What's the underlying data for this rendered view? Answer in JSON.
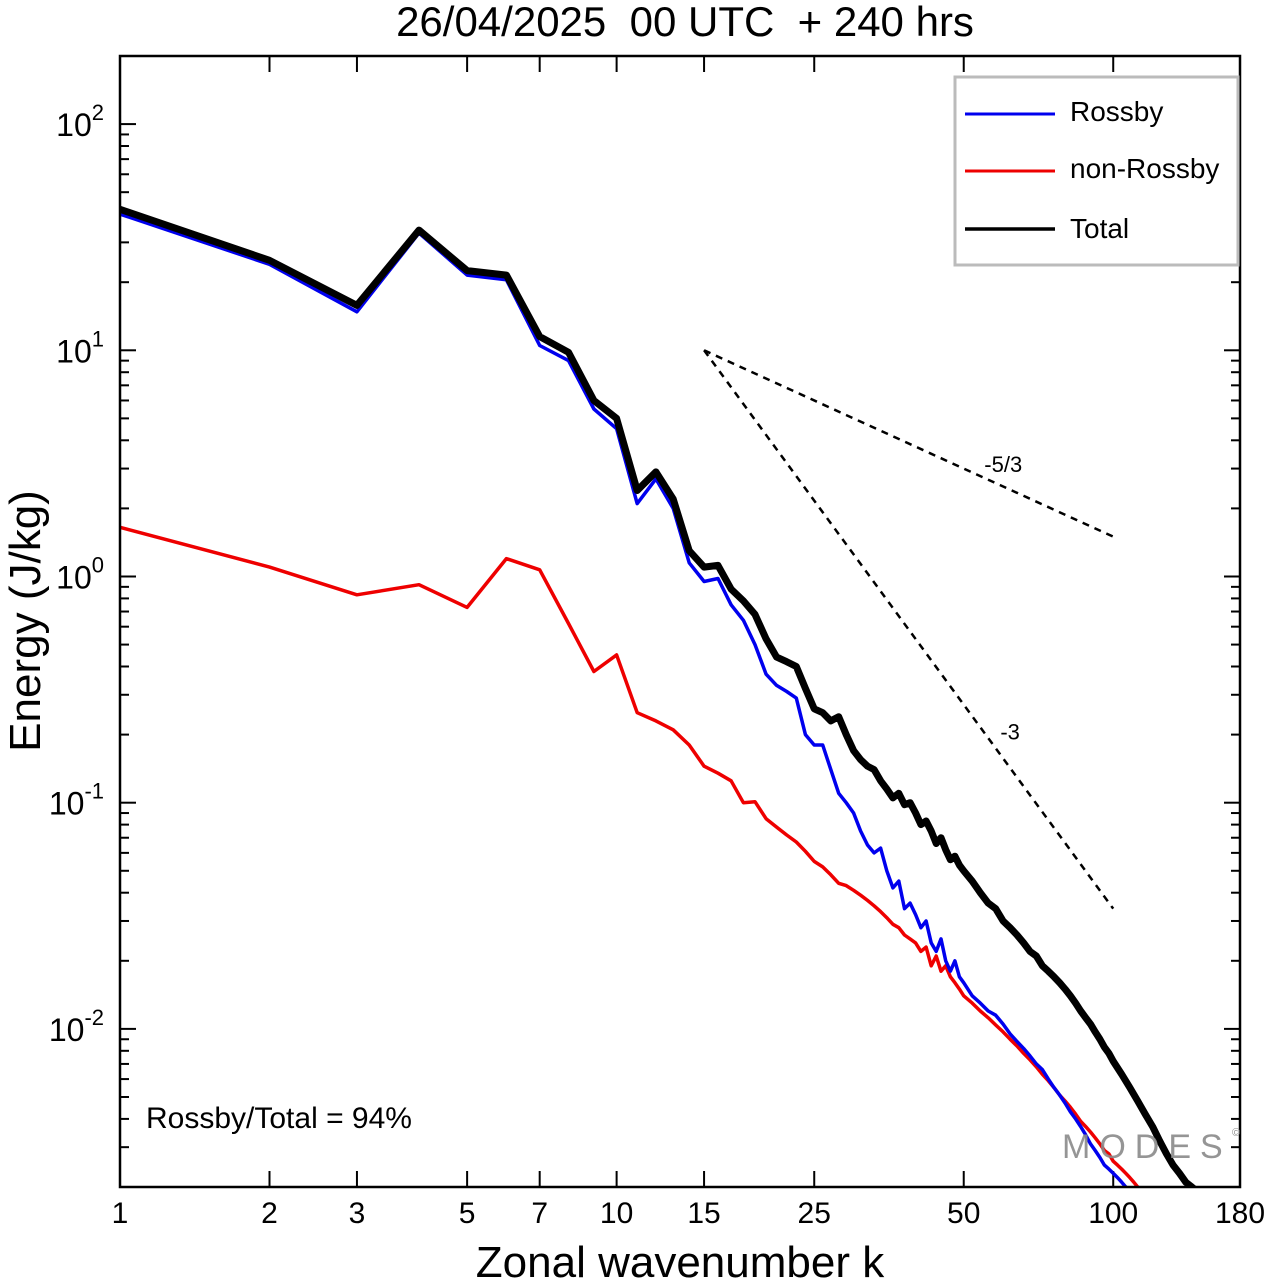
{
  "chart_data": {
    "type": "line",
    "title": "26/04/2025  00 UTC  + 240 hrs",
    "xlabel": "Zonal wavenumber k",
    "ylabel": "Energy (J/kg)",
    "xscale": "log",
    "yscale": "log",
    "xlim": [
      1,
      180
    ],
    "ylim": [
      0.002,
      200
    ],
    "x_ticks": [
      1,
      2,
      3,
      5,
      7,
      10,
      15,
      25,
      50,
      100,
      180
    ],
    "x_tick_labels": [
      "1",
      "2",
      "3",
      "5",
      "7",
      "10",
      "15",
      "25",
      "50",
      "100",
      "180"
    ],
    "y_ticks": [
      {
        "value": 100,
        "mantissa": "10",
        "exponent": "2"
      },
      {
        "value": 10,
        "mantissa": "10",
        "exponent": "1"
      },
      {
        "value": 1,
        "mantissa": "10",
        "exponent": "0"
      },
      {
        "value": 0.1,
        "mantissa": "10",
        "exponent": "-1"
      },
      {
        "value": 0.01,
        "mantissa": "10",
        "exponent": "-2"
      }
    ],
    "legend": {
      "placement": "top-right",
      "entries": [
        "Rossby",
        "non-Rossby",
        "Total"
      ]
    },
    "annotation": "Rossby/Total = 94%",
    "watermark": "MODES",
    "reference_lines": [
      {
        "label": "-5/3",
        "x": [
          15,
          100
        ],
        "y": [
          10,
          1.5
        ]
      },
      {
        "label": "-3",
        "x": [
          15,
          100
        ],
        "y": [
          10,
          0.034
        ]
      }
    ],
    "series": [
      {
        "name": "Rossby",
        "color": "#0000ee",
        "x": [
          1,
          2,
          3,
          4,
          5,
          6,
          7,
          8,
          9,
          10,
          11,
          12,
          13,
          14,
          15,
          16,
          17,
          18,
          19,
          20,
          21,
          22,
          23,
          24,
          25,
          26,
          27,
          28,
          29,
          30,
          31,
          32,
          33,
          34,
          35,
          36,
          37,
          38,
          39,
          40,
          41,
          42,
          43,
          44,
          45,
          46,
          47,
          48,
          49,
          50,
          52,
          54,
          56,
          58,
          60,
          62,
          64,
          66,
          68,
          70,
          72,
          74,
          76,
          78,
          80,
          82,
          84,
          86,
          88,
          90,
          92,
          94,
          96,
          98,
          100,
          102,
          104,
          106
        ],
        "y": [
          40,
          24,
          14.8,
          33,
          21.5,
          20.5,
          10.5,
          9.0,
          5.5,
          4.5,
          2.1,
          2.7,
          2.0,
          1.15,
          0.95,
          0.98,
          0.75,
          0.64,
          0.5,
          0.37,
          0.33,
          0.31,
          0.29,
          0.2,
          0.18,
          0.18,
          0.14,
          0.11,
          0.1,
          0.09,
          0.075,
          0.065,
          0.06,
          0.063,
          0.05,
          0.042,
          0.045,
          0.034,
          0.036,
          0.032,
          0.028,
          0.03,
          0.024,
          0.022,
          0.025,
          0.02,
          0.018,
          0.02,
          0.017,
          0.016,
          0.014,
          0.013,
          0.012,
          0.0115,
          0.0105,
          0.0095,
          0.0088,
          0.0082,
          0.0076,
          0.007,
          0.0066,
          0.006,
          0.0055,
          0.0051,
          0.0047,
          0.0043,
          0.004,
          0.0037,
          0.0034,
          0.0031,
          0.0029,
          0.0027,
          0.0025,
          0.0024,
          0.0023,
          0.0022,
          0.0021,
          0.002
        ]
      },
      {
        "name": "non-Rossby",
        "color": "#ee0000",
        "x": [
          1,
          2,
          3,
          4,
          5,
          6,
          7,
          8,
          9,
          10,
          11,
          12,
          13,
          14,
          15,
          16,
          17,
          18,
          19,
          20,
          21,
          22,
          23,
          24,
          25,
          26,
          27,
          28,
          29,
          30,
          31,
          32,
          33,
          34,
          35,
          36,
          37,
          38,
          39,
          40,
          41,
          42,
          43,
          44,
          45,
          46,
          47,
          48,
          49,
          50,
          52,
          54,
          56,
          58,
          60,
          62,
          64,
          66,
          68,
          70,
          72,
          74,
          76,
          78,
          80,
          82,
          84,
          86,
          88,
          90,
          92,
          94,
          96,
          98,
          100,
          102,
          104,
          106,
          108,
          110,
          112,
          114,
          116
        ],
        "y": [
          1.65,
          1.1,
          0.83,
          0.92,
          0.73,
          1.2,
          1.07,
          0.62,
          0.38,
          0.45,
          0.25,
          0.23,
          0.21,
          0.18,
          0.145,
          0.135,
          0.125,
          0.1,
          0.101,
          0.085,
          0.078,
          0.072,
          0.067,
          0.061,
          0.055,
          0.052,
          0.048,
          0.044,
          0.043,
          0.041,
          0.039,
          0.037,
          0.035,
          0.033,
          0.031,
          0.029,
          0.028,
          0.026,
          0.025,
          0.024,
          0.022,
          0.023,
          0.019,
          0.021,
          0.018,
          0.019,
          0.017,
          0.016,
          0.015,
          0.014,
          0.013,
          0.012,
          0.0112,
          0.0104,
          0.0097,
          0.009,
          0.0084,
          0.0078,
          0.0073,
          0.0068,
          0.0063,
          0.0059,
          0.0055,
          0.0051,
          0.0048,
          0.0045,
          0.0042,
          0.0039,
          0.0037,
          0.0035,
          0.0033,
          0.0031,
          0.0029,
          0.0028,
          0.0026,
          0.0025,
          0.0024,
          0.0023,
          0.0022,
          0.0021,
          0.002,
          0.0019,
          0.0018
        ]
      },
      {
        "name": "Total",
        "color": "#000000",
        "x": [
          1,
          2,
          3,
          4,
          5,
          6,
          7,
          8,
          9,
          10,
          11,
          12,
          13,
          14,
          15,
          16,
          17,
          18,
          19,
          20,
          21,
          22,
          23,
          24,
          25,
          26,
          27,
          28,
          29,
          30,
          31,
          32,
          33,
          34,
          35,
          36,
          37,
          38,
          39,
          40,
          41,
          42,
          43,
          44,
          45,
          46,
          47,
          48,
          49,
          50,
          52,
          54,
          56,
          58,
          60,
          62,
          64,
          66,
          68,
          70,
          72,
          74,
          76,
          78,
          80,
          82,
          84,
          86,
          88,
          90,
          92,
          94,
          96,
          98,
          100,
          104,
          108,
          112,
          116,
          120,
          124,
          128,
          132,
          136,
          140,
          144,
          148,
          152
        ],
        "y": [
          42,
          25,
          15.8,
          34,
          22.5,
          21.5,
          11.5,
          9.8,
          6.0,
          5.0,
          2.4,
          2.9,
          2.2,
          1.3,
          1.1,
          1.12,
          0.88,
          0.78,
          0.68,
          0.53,
          0.44,
          0.42,
          0.4,
          0.32,
          0.26,
          0.25,
          0.23,
          0.24,
          0.2,
          0.17,
          0.155,
          0.145,
          0.14,
          0.125,
          0.115,
          0.105,
          0.11,
          0.098,
          0.1,
          0.09,
          0.08,
          0.083,
          0.075,
          0.066,
          0.07,
          0.062,
          0.056,
          0.058,
          0.053,
          0.05,
          0.045,
          0.04,
          0.036,
          0.034,
          0.03,
          0.028,
          0.026,
          0.024,
          0.022,
          0.021,
          0.019,
          0.018,
          0.017,
          0.016,
          0.015,
          0.014,
          0.013,
          0.012,
          0.0112,
          0.0105,
          0.0097,
          0.009,
          0.0083,
          0.0078,
          0.0072,
          0.0063,
          0.0055,
          0.0048,
          0.0042,
          0.0037,
          0.0032,
          0.0028,
          0.0025,
          0.0023,
          0.0021,
          0.002,
          0.0019,
          0.0018
        ]
      }
    ]
  }
}
